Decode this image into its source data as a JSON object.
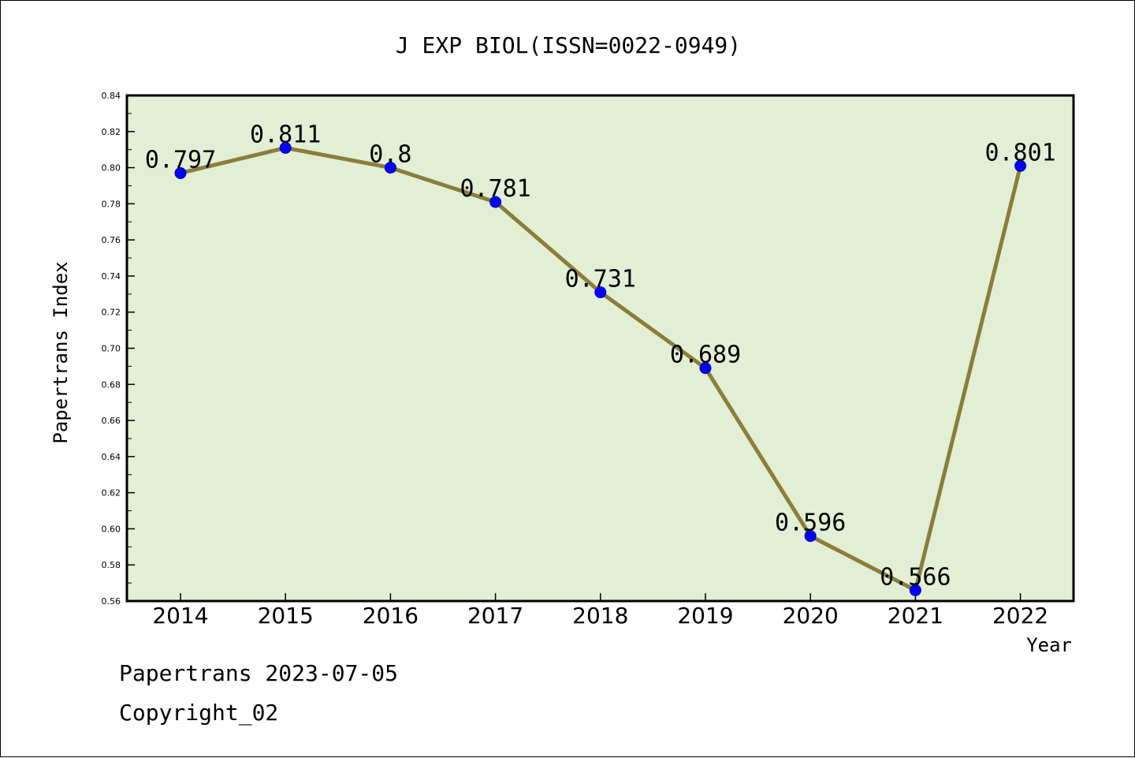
{
  "chart_data": {
    "type": "line",
    "title": "J EXP BIOL(ISSN=0022-0949)",
    "xlabel": "Year",
    "ylabel": "Papertrans Index",
    "categories": [
      "2014",
      "2015",
      "2016",
      "2017",
      "2018",
      "2019",
      "2020",
      "2021",
      "2022"
    ],
    "values": [
      0.797,
      0.811,
      0.8,
      0.781,
      0.731,
      0.689,
      0.596,
      0.566,
      0.801
    ],
    "data_labels": [
      "0.797",
      "0.811",
      "0.8",
      "0.781",
      "0.731",
      "0.689",
      "0.596",
      "0.566",
      "0.801"
    ],
    "ylim": [
      0.56,
      0.84
    ],
    "yticks": [
      "0.56",
      "0.58",
      "0.60",
      "0.62",
      "0.64",
      "0.66",
      "0.68",
      "0.70",
      "0.72",
      "0.74",
      "0.76",
      "0.78",
      "0.80",
      "0.82",
      "0.84"
    ],
    "grid": false,
    "legend": "none",
    "colors": {
      "plot_background": "#e2efd5",
      "line": "#8b7d3a",
      "marker": "#0000ff"
    }
  },
  "footer": {
    "line1": "Papertrans 2023-07-05",
    "line2": "Copyright_02"
  }
}
